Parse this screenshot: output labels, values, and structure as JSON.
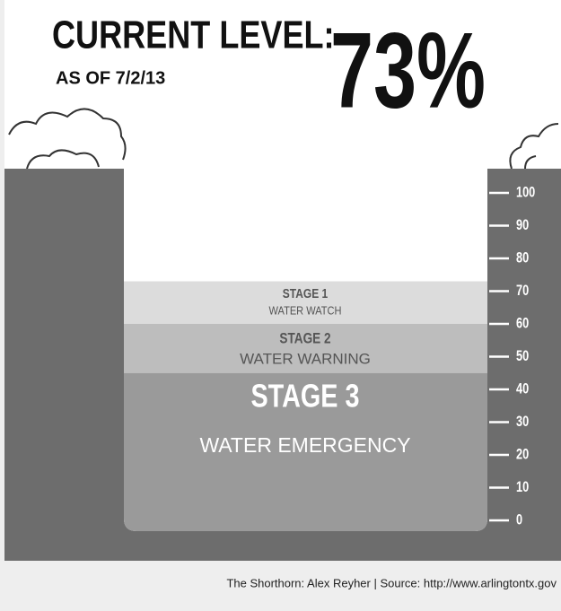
{
  "chart_data": {
    "type": "reservoir",
    "title": "CURRENT LEVEL:",
    "subtitle": "AS OF 7/2/13",
    "value": 73,
    "value_label": "73%",
    "ylim": [
      0,
      100
    ],
    "yticks": [
      0,
      10,
      20,
      30,
      40,
      50,
      60,
      70,
      80,
      90,
      100
    ],
    "stages": [
      {
        "name": "STAGE 1",
        "label": "WATER WATCH",
        "from": 60,
        "color": "#dcdcdc"
      },
      {
        "name": "STAGE 2",
        "label": "WATER WARNING",
        "from": 45,
        "color": "#bdbdbd"
      },
      {
        "name": "STAGE 3",
        "label": "WATER EMERGENCY",
        "from": 0,
        "color": "#9a9a9a"
      }
    ],
    "ground_color": "#6d6d6d",
    "source": "The Shorthorn: Alex Reyher | Source: http://www.arlingtontx.gov"
  }
}
